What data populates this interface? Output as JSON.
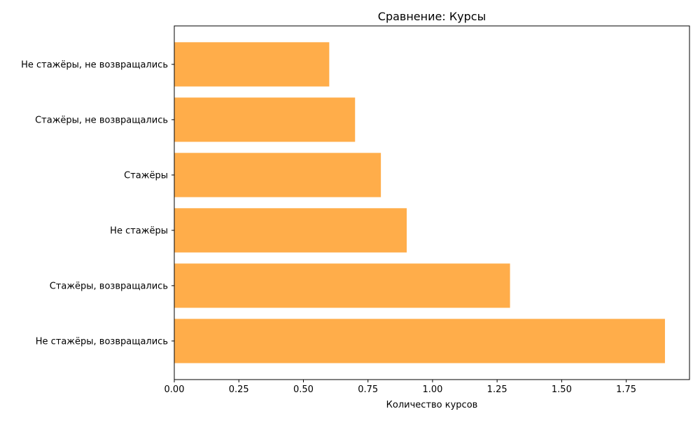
{
  "chart_data": {
    "type": "bar",
    "orientation": "horizontal",
    "title": "Сравнение: Курсы",
    "xlabel": "Количество курсов",
    "ylabel": "",
    "categories": [
      "Не стажёры, возвращались",
      "Стажёры, возвращались",
      "Не стажёры",
      "Стажёры",
      "Стажёры, не возвращались",
      "Не стажёры, не возвращались"
    ],
    "values": [
      1.9,
      1.3,
      0.9,
      0.8,
      0.7,
      0.6
    ],
    "xlim": [
      0,
      1.995
    ],
    "xticks": [
      0.0,
      0.25,
      0.5,
      0.75,
      1.0,
      1.25,
      1.5,
      1.75
    ],
    "xtick_labels": [
      "0.00",
      "0.25",
      "0.50",
      "0.75",
      "1.00",
      "1.25",
      "1.50",
      "1.75"
    ],
    "grid": false,
    "legend": "none",
    "bar_color": "#ffad4a"
  }
}
